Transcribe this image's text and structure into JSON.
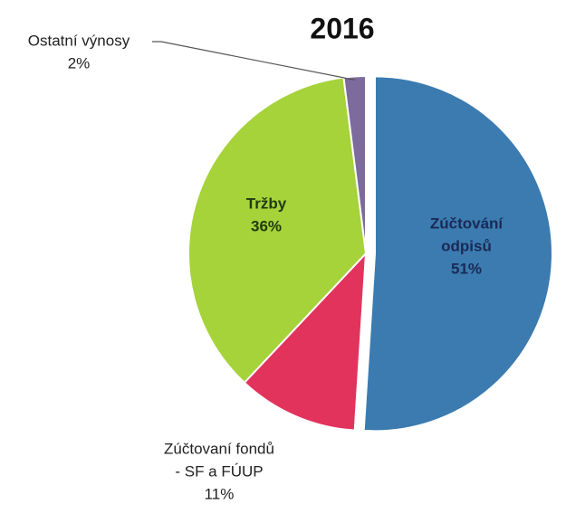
{
  "chart_data": {
    "type": "pie",
    "title": "2016",
    "categories": [
      [
        "Zúčtování",
        "odpisů"
      ],
      [
        "Zúčtovaní fondů",
        "- SF a FÚUP"
      ],
      [
        "Tržby"
      ],
      [
        "Ostatní výnosy"
      ]
    ],
    "values": [
      51,
      11,
      36,
      2
    ],
    "value_labels": [
      "51%",
      "11%",
      "36%",
      "2%"
    ],
    "colors": [
      "#3b7bb0",
      "#e2335c",
      "#a6d23a",
      "#7d6b9c"
    ]
  }
}
